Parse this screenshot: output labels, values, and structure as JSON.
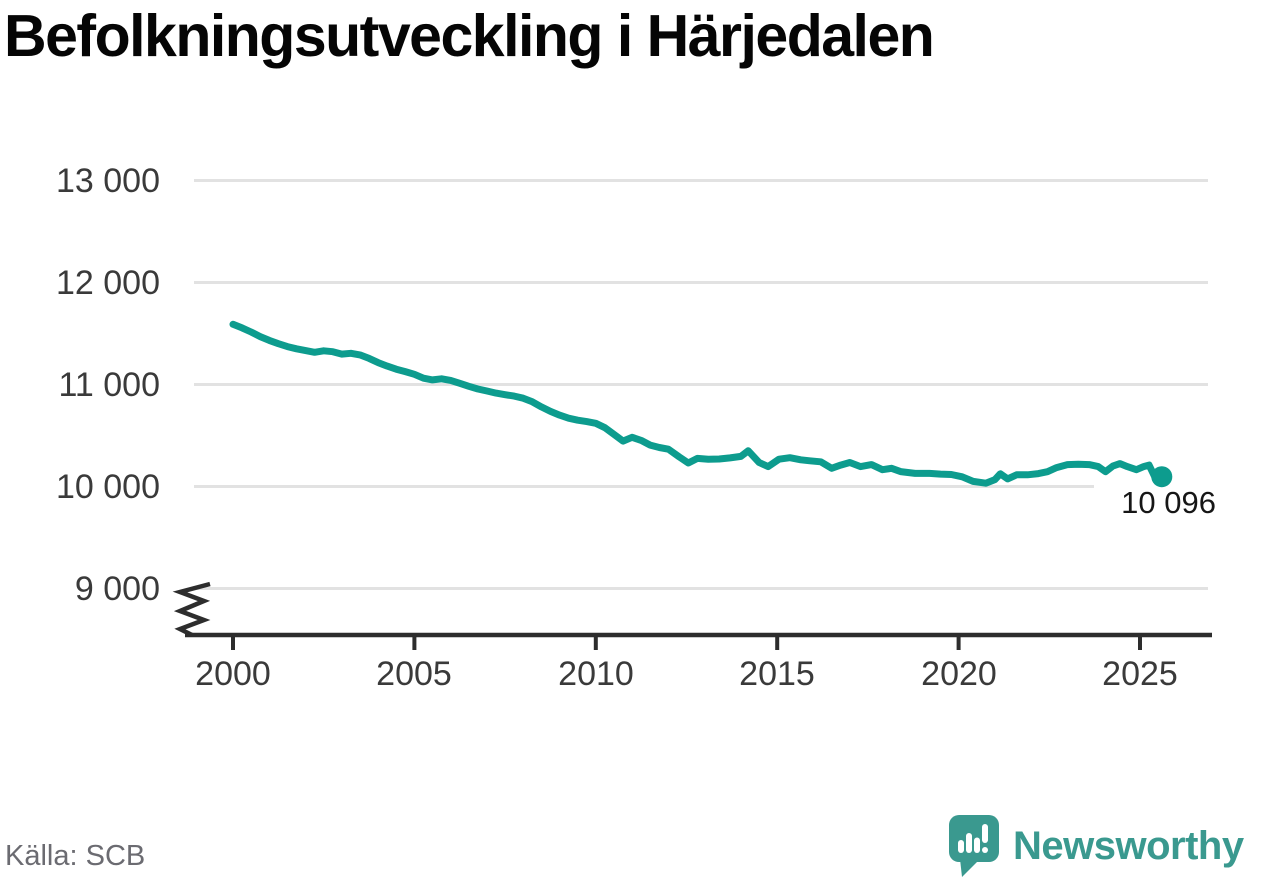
{
  "title": "Befolkningsutveckling i Härjedalen",
  "source": "Källa: SCB",
  "branding": {
    "name": "Newsworthy",
    "icon": "newsworthy-speech-bubble-chart-icon"
  },
  "colors": {
    "background": "#ffffff",
    "line": "#0d9c8e",
    "grid": "#e2e2e2",
    "axis": "#2d2d2d",
    "tick_label": "#3a3a3a",
    "title": "#050505",
    "annotation": "#161616",
    "source_text": "#6b6b71",
    "brand": "#3a998f"
  },
  "chart_data": {
    "type": "line",
    "title": "Befolkningsutveckling i Härjedalen",
    "xlabel": "",
    "ylabel": "",
    "legend": "none",
    "grid": "horizontal",
    "broken_y_axis": true,
    "x_range": [
      2000,
      2025.6
    ],
    "y_ticks": [
      13000,
      12000,
      11000,
      10000,
      9000
    ],
    "y_tick_labels": [
      "13 000",
      "12 000",
      "11 000",
      "10 000",
      "9 000"
    ],
    "x_ticks": [
      2000,
      2005,
      2010,
      2015,
      2020,
      2025
    ],
    "x_tick_labels": [
      "2000",
      "2005",
      "2010",
      "2015",
      "2020",
      "2025"
    ],
    "end_label": "10 096",
    "end_value": 10096,
    "series": [
      {
        "name": "Befolkning",
        "points": [
          [
            2000.0,
            11590
          ],
          [
            2000.25,
            11555
          ],
          [
            2000.5,
            11515
          ],
          [
            2000.75,
            11470
          ],
          [
            2001.0,
            11432
          ],
          [
            2001.25,
            11400
          ],
          [
            2001.5,
            11372
          ],
          [
            2001.75,
            11350
          ],
          [
            2002.0,
            11332
          ],
          [
            2002.25,
            11316
          ],
          [
            2002.5,
            11330
          ],
          [
            2002.75,
            11322
          ],
          [
            2003.0,
            11298
          ],
          [
            2003.25,
            11306
          ],
          [
            2003.5,
            11290
          ],
          [
            2003.75,
            11256
          ],
          [
            2004.0,
            11215
          ],
          [
            2004.25,
            11180
          ],
          [
            2004.5,
            11150
          ],
          [
            2004.75,
            11126
          ],
          [
            2005.0,
            11100
          ],
          [
            2005.25,
            11062
          ],
          [
            2005.5,
            11045
          ],
          [
            2005.75,
            11056
          ],
          [
            2006.0,
            11040
          ],
          [
            2006.25,
            11012
          ],
          [
            2006.5,
            10982
          ],
          [
            2006.75,
            10956
          ],
          [
            2007.0,
            10936
          ],
          [
            2007.25,
            10916
          ],
          [
            2007.5,
            10900
          ],
          [
            2007.75,
            10886
          ],
          [
            2008.0,
            10866
          ],
          [
            2008.25,
            10830
          ],
          [
            2008.5,
            10780
          ],
          [
            2008.75,
            10736
          ],
          [
            2009.0,
            10700
          ],
          [
            2009.25,
            10670
          ],
          [
            2009.5,
            10650
          ],
          [
            2009.75,
            10636
          ],
          [
            2010.0,
            10620
          ],
          [
            2010.25,
            10576
          ],
          [
            2010.5,
            10512
          ],
          [
            2010.75,
            10445
          ],
          [
            2011.0,
            10482
          ],
          [
            2011.25,
            10452
          ],
          [
            2011.5,
            10406
          ],
          [
            2011.75,
            10382
          ],
          [
            2012.0,
            10366
          ],
          [
            2012.3,
            10290
          ],
          [
            2012.55,
            10230
          ],
          [
            2012.8,
            10275
          ],
          [
            2013.1,
            10268
          ],
          [
            2013.4,
            10270
          ],
          [
            2013.7,
            10280
          ],
          [
            2014.0,
            10295
          ],
          [
            2014.2,
            10350
          ],
          [
            2014.5,
            10235
          ],
          [
            2014.75,
            10195
          ],
          [
            2015.05,
            10268
          ],
          [
            2015.35,
            10282
          ],
          [
            2015.65,
            10262
          ],
          [
            2015.9,
            10252
          ],
          [
            2016.2,
            10242
          ],
          [
            2016.5,
            10178
          ],
          [
            2016.75,
            10210
          ],
          [
            2017.0,
            10235
          ],
          [
            2017.3,
            10195
          ],
          [
            2017.6,
            10215
          ],
          [
            2017.9,
            10165
          ],
          [
            2018.15,
            10178
          ],
          [
            2018.4,
            10146
          ],
          [
            2018.8,
            10128
          ],
          [
            2019.2,
            10128
          ],
          [
            2019.5,
            10122
          ],
          [
            2019.8,
            10118
          ],
          [
            2020.1,
            10095
          ],
          [
            2020.4,
            10050
          ],
          [
            2020.75,
            10032
          ],
          [
            2021.0,
            10068
          ],
          [
            2021.15,
            10125
          ],
          [
            2021.35,
            10075
          ],
          [
            2021.6,
            10115
          ],
          [
            2021.9,
            10115
          ],
          [
            2022.2,
            10126
          ],
          [
            2022.45,
            10145
          ],
          [
            2022.7,
            10185
          ],
          [
            2023.0,
            10215
          ],
          [
            2023.3,
            10218
          ],
          [
            2023.6,
            10215
          ],
          [
            2023.85,
            10195
          ],
          [
            2024.05,
            10145
          ],
          [
            2024.25,
            10200
          ],
          [
            2024.45,
            10225
          ],
          [
            2024.65,
            10195
          ],
          [
            2024.9,
            10165
          ],
          [
            2025.1,
            10195
          ],
          [
            2025.25,
            10210
          ],
          [
            2025.38,
            10115
          ],
          [
            2025.48,
            10045
          ],
          [
            2025.6,
            10096
          ]
        ]
      }
    ]
  }
}
